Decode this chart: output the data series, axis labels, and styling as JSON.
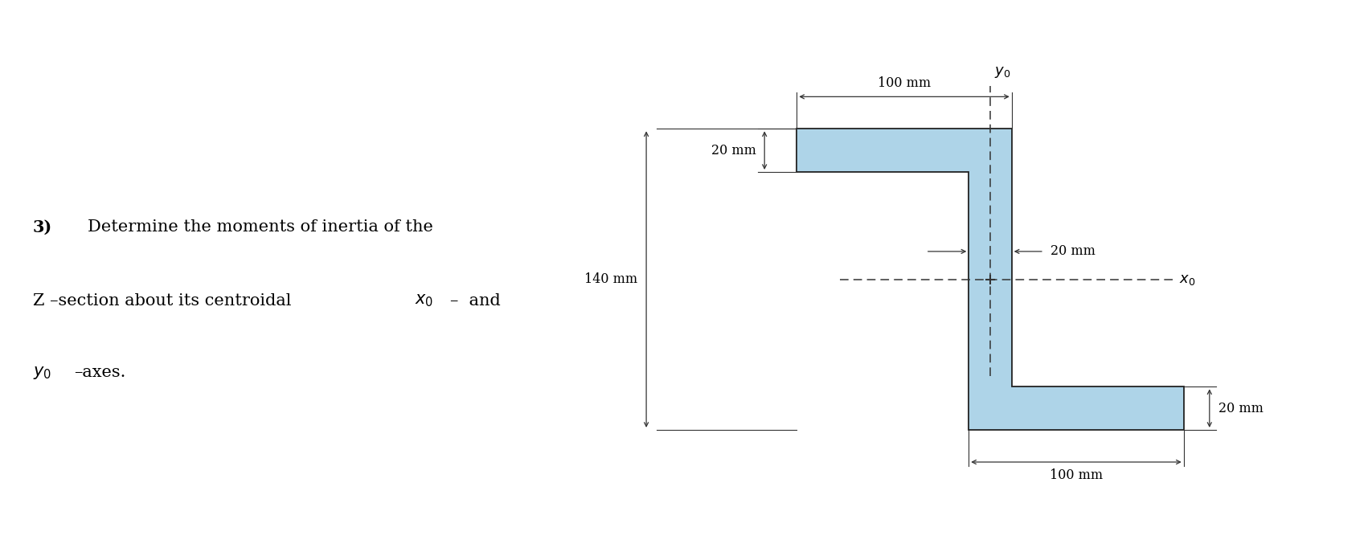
{
  "fig_width": 17.08,
  "fig_height": 6.82,
  "bg_color": "#ffffff",
  "shape_fill": "#aed4e8",
  "shape_edge": "#222222",
  "shape_linewidth": 1.3,
  "text_problem": "3)",
  "text_line1": "Determine the moments of inertia of the",
  "text_line2_a": "Z ",
  "text_line2_b": "–section about its centroidal ",
  "text_line2_c": "x",
  "text_line2_d": "0",
  "text_line2_e": "–  and",
  "text_line3_a": "y",
  "text_line3_b": "0",
  "text_line3_c": " –axes.",
  "dim_100mm_top": "100 mm",
  "dim_20mm_top": "20 mm",
  "dim_140mm": "140 mm",
  "dim_20mm_web": "20 mm",
  "dim_20mm_bot": "20 mm",
  "dim_100mm_bot": "100 mm",
  "label_x0": "x",
  "label_x0_sub": "0",
  "label_y0": "y",
  "label_y0_sub": "0",
  "anno_fontsize": 11.5,
  "label_fontsize": 14,
  "sub_fontsize": 10
}
